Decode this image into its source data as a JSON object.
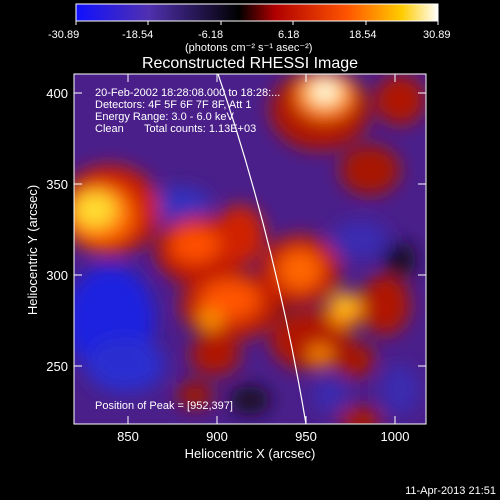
{
  "title": "Reconstructed RHESSI Image",
  "colorbar": {
    "ticks": [
      "-30.89",
      "-18.54",
      "-6.18",
      "6.18",
      "18.54",
      "30.89"
    ],
    "units": "(photons cm⁻² s⁻¹ asec⁻²)",
    "range": [
      -30.89,
      30.89
    ],
    "colors": [
      "#1a1aff",
      "#6633aa",
      "#000000",
      "#cc2200",
      "#ff8800",
      "#ffff66",
      "#ffffff"
    ]
  },
  "annotations": {
    "line1": "20-Feb-2002 18:28:08.000 to 18:28:...",
    "line2": "Detectors: 4F 5F 6F 7F 8F, Att 1",
    "line3": "Energy Range: 3.0 - 6.0 keV",
    "line4_left": "Clean",
    "line4_right": "Total counts: 1.13E+03",
    "peak": "Position of Peak = [952,397]"
  },
  "x_axis": {
    "label": "Heliocentric X (arcsec)",
    "ticks": [
      "850",
      "900",
      "950",
      "1000"
    ],
    "range": [
      818,
      1022
    ]
  },
  "y_axis": {
    "label": "Heliocentric Y (arcsec)",
    "ticks": [
      "250",
      "300",
      "350",
      "400"
    ],
    "range": [
      215,
      418
    ]
  },
  "footer": {
    "timestamp": "11-Apr-2013 21:51"
  }
}
